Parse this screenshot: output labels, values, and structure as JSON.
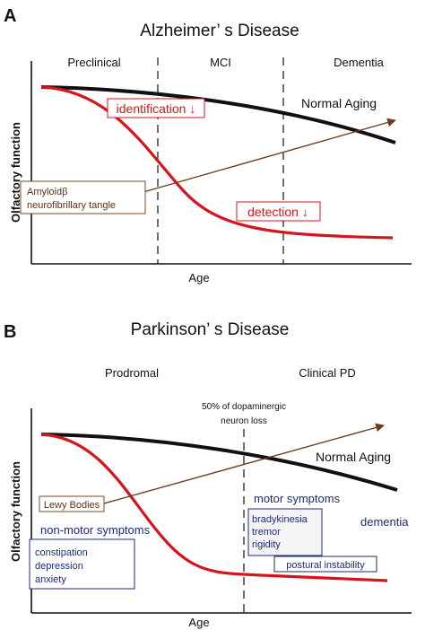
{
  "colors": {
    "normal_aging": "#111111",
    "disease_curve": "#d4161c",
    "arrow": "#6b3d1e",
    "label_navy": "#1d2a80",
    "label_red": "#d4161c",
    "label_brown": "#5a3418"
  },
  "panel_a": {
    "letter": "A",
    "title": "Alzheimer’ s Disease",
    "stages": [
      "Preclinical",
      "MCI",
      "Dementia"
    ],
    "curve_normal_label": "Normal Aging",
    "identification_label": "identification ↓",
    "detection_label": "detection ↓",
    "pathology_line1": "Amyloidβ",
    "pathology_line2": "neurofibrillary tangle",
    "ylabel": "Olfactory function",
    "xlabel": "Age"
  },
  "panel_b": {
    "letter": "B",
    "title": "Parkinson’ s Disease",
    "stages": [
      "Prodromal",
      "Clinical PD"
    ],
    "threshold_line1": "50% of dopaminergic",
    "threshold_line2": "neuron loss",
    "curve_normal_label": "Normal Aging",
    "lewy_label": "Lewy Bodies",
    "nonmotor_label": "non-motor symptoms",
    "nonmotor_items": [
      "constipation",
      "depression",
      "anxiety"
    ],
    "motor_label": "motor symptoms",
    "motor_items": [
      "bradykinesia",
      "tremor",
      "rigidity"
    ],
    "postural_label": "postural instability",
    "dementia_label": "dementia",
    "ylabel": "Olfactory function",
    "xlabel": "Age"
  }
}
